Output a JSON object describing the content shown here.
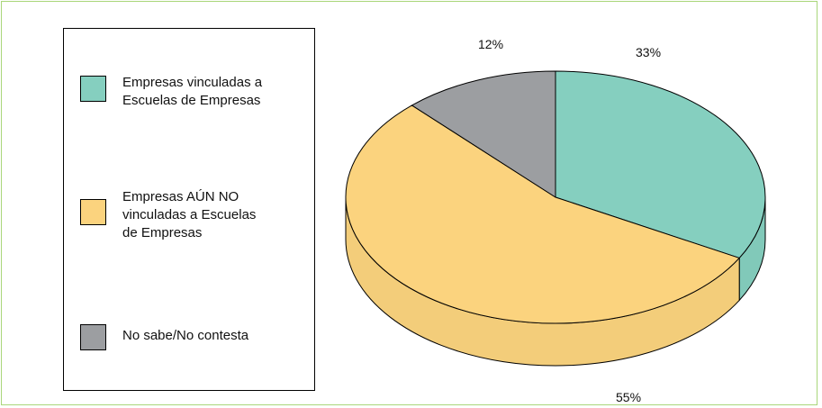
{
  "chart_data": {
    "type": "pie",
    "style": "3d",
    "slices": [
      {
        "label": "Empresas vinculadas a\nEscuelas de Empresas",
        "value": 33,
        "value_label": "33%",
        "color": "#85cfbf"
      },
      {
        "label": "Empresas AÚN NO\nvinculadas a Escuelas\nde Empresas",
        "value": 55,
        "value_label": "55%",
        "color": "#fbd37e"
      },
      {
        "label": "No sabe/No contesta",
        "value": 12,
        "value_label": "12%",
        "color": "#9c9ea1"
      }
    ],
    "legend_position": "left",
    "colors": {
      "frame_border": "#a9d67a"
    }
  }
}
